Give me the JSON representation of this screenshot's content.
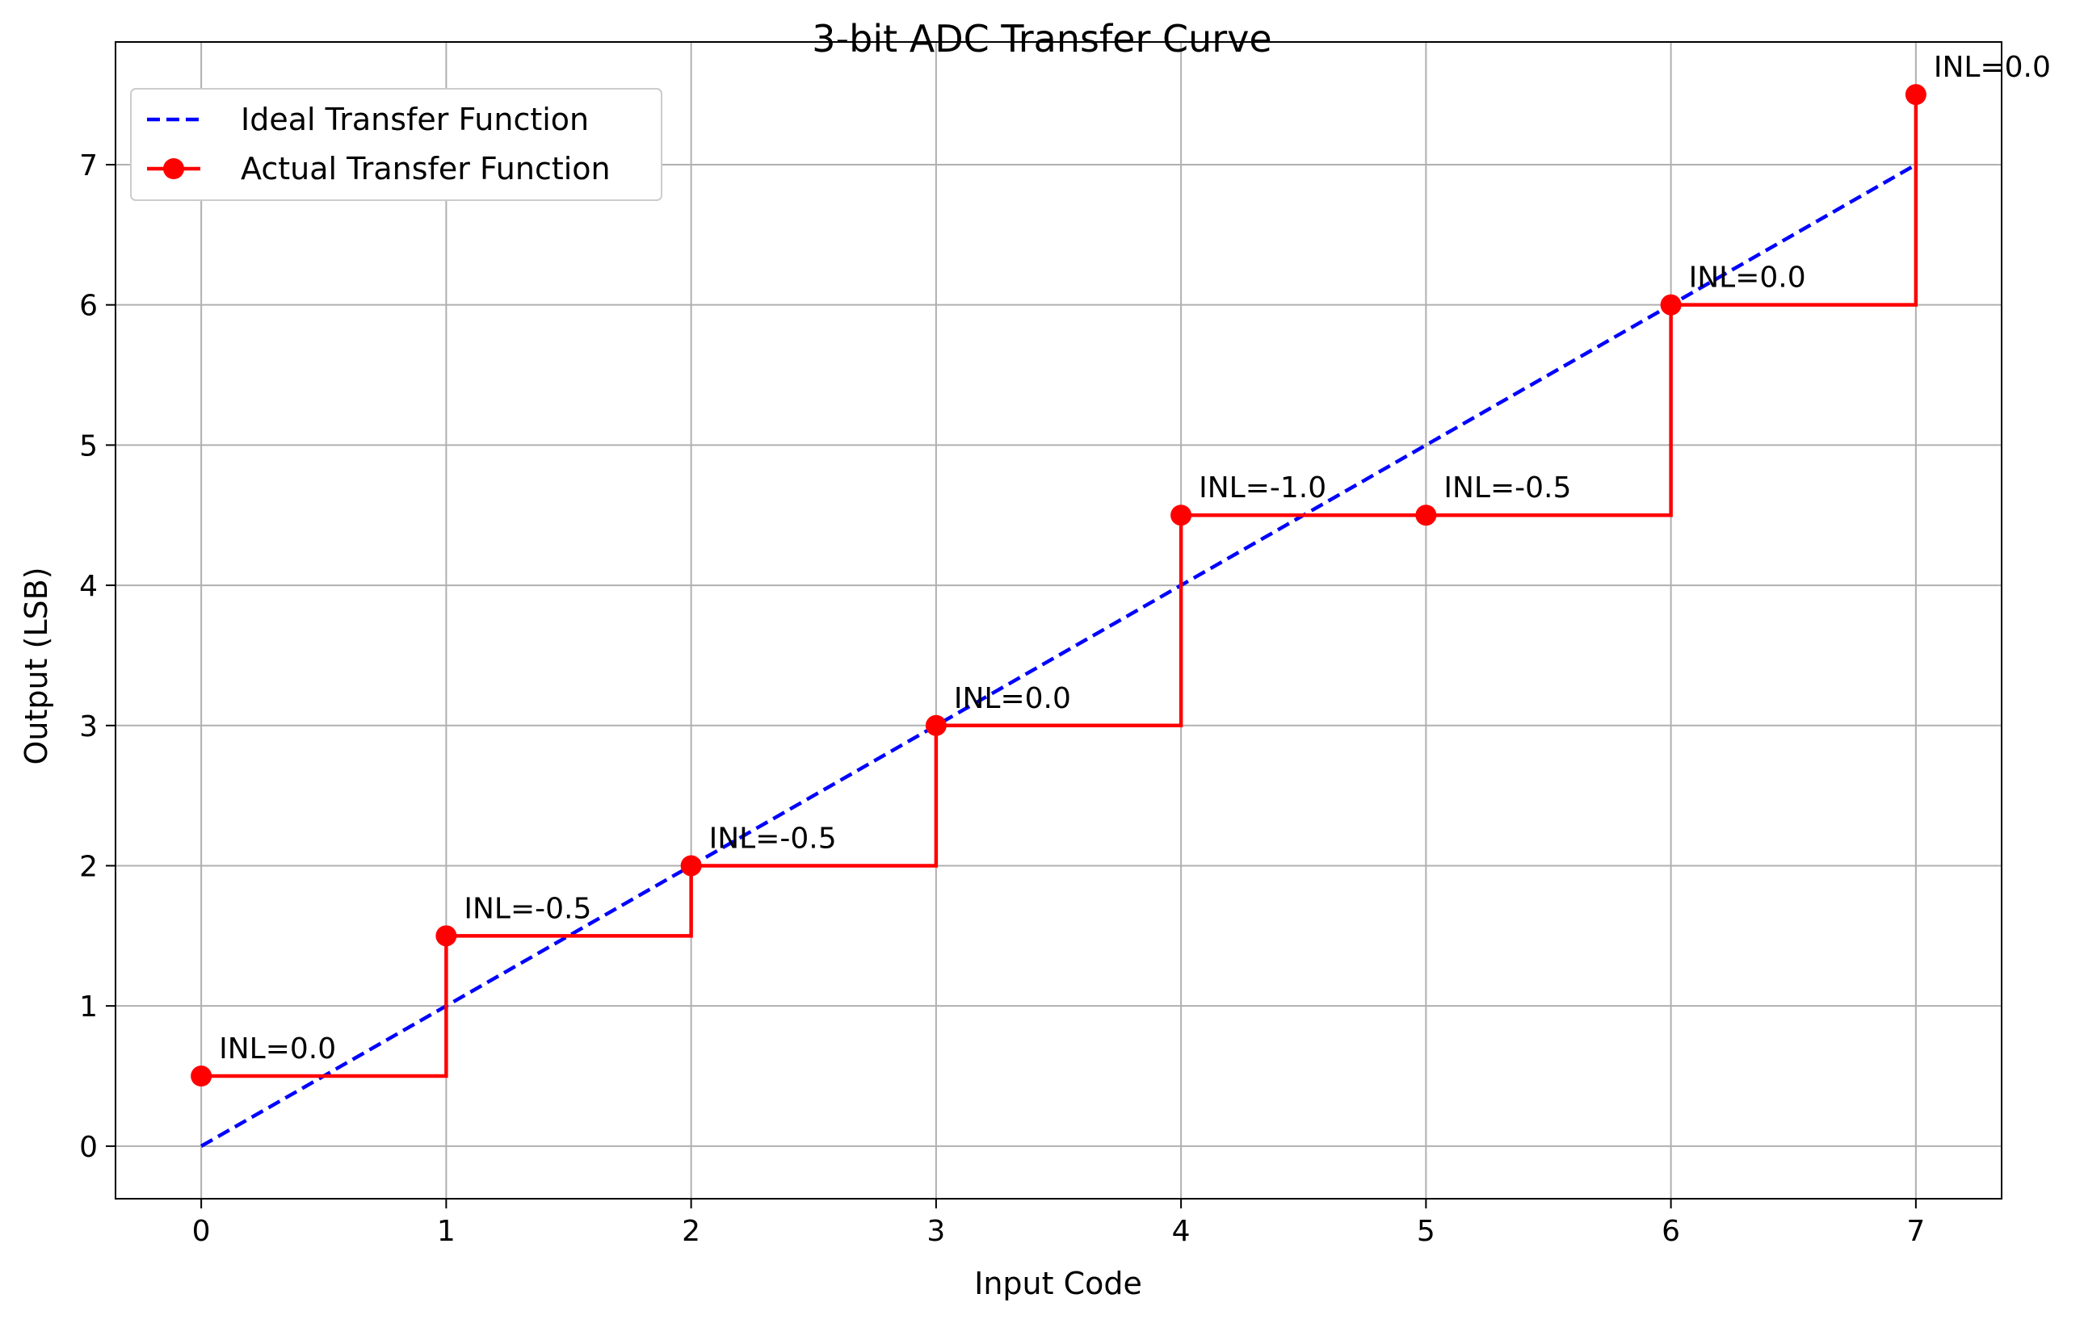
{
  "chart_data": {
    "type": "line",
    "title": "3-bit ADC Transfer Curve",
    "xlabel": "Input Code",
    "ylabel": "Output (LSB)",
    "xlim": [
      -0.35,
      7.35
    ],
    "ylim": [
      -0.375,
      7.875
    ],
    "xticks": [
      0,
      1,
      2,
      3,
      4,
      5,
      6,
      7
    ],
    "yticks": [
      0,
      1,
      2,
      3,
      4,
      5,
      6,
      7
    ],
    "xtick_labels": [
      "0",
      "1",
      "2",
      "3",
      "4",
      "5",
      "6",
      "7"
    ],
    "ytick_labels": [
      "0",
      "1",
      "2",
      "3",
      "4",
      "5",
      "6",
      "7"
    ],
    "grid": true,
    "legend_position": "top-left",
    "series": [
      {
        "name": "Ideal Transfer Function",
        "style": "dashed",
        "color": "#0000ff",
        "x": [
          0,
          7
        ],
        "y": [
          0,
          7
        ]
      },
      {
        "name": "Actual Transfer Function",
        "style": "step-post-with-markers",
        "color": "#ff0000",
        "x": [
          0,
          1,
          2,
          3,
          4,
          5,
          6,
          7
        ],
        "y": [
          0.5,
          1.5,
          2.0,
          3.0,
          4.5,
          4.5,
          6.0,
          7.5
        ]
      }
    ],
    "annotations": [
      {
        "x": 0,
        "y": 0.5,
        "text": "INL=0.0"
      },
      {
        "x": 1,
        "y": 1.5,
        "text": "INL=-0.5"
      },
      {
        "x": 2,
        "y": 2.0,
        "text": "INL=-0.5"
      },
      {
        "x": 3,
        "y": 3.0,
        "text": "INL=0.0"
      },
      {
        "x": 4,
        "y": 4.5,
        "text": "INL=-1.0"
      },
      {
        "x": 5,
        "y": 4.5,
        "text": "INL=-0.5"
      },
      {
        "x": 6,
        "y": 6.0,
        "text": "INL=0.0"
      },
      {
        "x": 7,
        "y": 7.5,
        "text": "INL=0.0"
      }
    ]
  },
  "colors": {
    "ideal": "#0000ff",
    "actual": "#ff0000",
    "grid": "#b0b0b0",
    "axes": "#000000",
    "legend_border": "#cccccc"
  }
}
